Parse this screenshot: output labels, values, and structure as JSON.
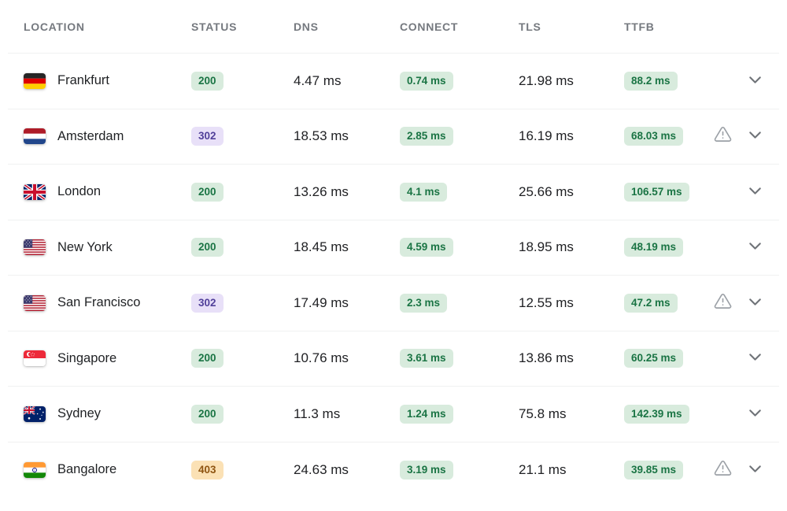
{
  "header": {
    "columns": [
      "Location",
      "Status",
      "DNS",
      "Connect",
      "TLS",
      "TTFB"
    ]
  },
  "rows": [
    {
      "location": "Frankfurt",
      "country": "germany",
      "status": "200",
      "status_color": "green",
      "dns": "4.47 ms",
      "connect": "0.74 ms",
      "tls": "21.98 ms",
      "ttfb": "88.2 ms",
      "warning": false
    },
    {
      "location": "Amsterdam",
      "country": "netherlands",
      "status": "302",
      "status_color": "purple",
      "dns": "18.53 ms",
      "connect": "2.85 ms",
      "tls": "16.19 ms",
      "ttfb": "68.03 ms",
      "warning": true
    },
    {
      "location": "London",
      "country": "united-kingdom",
      "status": "200",
      "status_color": "green",
      "dns": "13.26 ms",
      "connect": "4.1 ms",
      "tls": "25.66 ms",
      "ttfb": "106.57 ms",
      "warning": false
    },
    {
      "location": "New York",
      "country": "united-states",
      "status": "200",
      "status_color": "green",
      "dns": "18.45 ms",
      "connect": "4.59 ms",
      "tls": "18.95 ms",
      "ttfb": "48.19 ms",
      "warning": false
    },
    {
      "location": "San Francisco",
      "country": "united-states",
      "status": "302",
      "status_color": "purple",
      "dns": "17.49 ms",
      "connect": "2.3 ms",
      "tls": "12.55 ms",
      "ttfb": "47.2 ms",
      "warning": true
    },
    {
      "location": "Singapore",
      "country": "singapore",
      "status": "200",
      "status_color": "green",
      "dns": "10.76 ms",
      "connect": "3.61 ms",
      "tls": "13.86 ms",
      "ttfb": "60.25 ms",
      "warning": false
    },
    {
      "location": "Sydney",
      "country": "australia",
      "status": "200",
      "status_color": "green",
      "dns": "11.3 ms",
      "connect": "1.24 ms",
      "tls": "75.8 ms",
      "ttfb": "142.39 ms",
      "warning": false
    },
    {
      "location": "Bangalore",
      "country": "india",
      "status": "403",
      "status_color": "orange",
      "dns": "24.63 ms",
      "connect": "3.19 ms",
      "tls": "21.1 ms",
      "ttfb": "39.85 ms",
      "warning": true
    }
  ],
  "colors": {
    "badge_green_bg": "#d8ebdd",
    "badge_green_text": "#1a7444",
    "badge_purple_bg": "#e8e0f8",
    "badge_purple_text": "#51409a",
    "badge_orange_bg": "#fbe1b5",
    "badge_orange_text": "#8f5512"
  },
  "icons": {
    "warning": "alert-triangle-icon",
    "expand": "chevron-down-icon"
  }
}
